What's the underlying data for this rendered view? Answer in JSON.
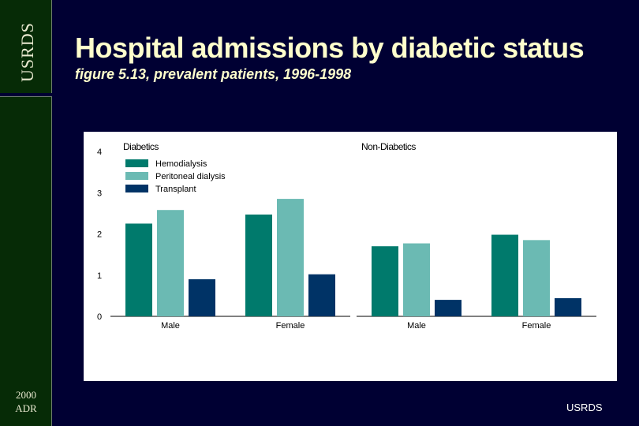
{
  "sidebar": {
    "vertical_label": "USRDS",
    "year": "2000",
    "adr": "ADR"
  },
  "header": {
    "title": "Hospital admissions by diabetic status",
    "subtitle": "figure 5.13, prevalent patients, 1996-1998"
  },
  "footer": {
    "label": "USRDS"
  },
  "colors": {
    "Hemodialysis": "#007a6c",
    "Peritoneal dialysis": "#6bbab3",
    "Transplant": "#003366"
  },
  "chart_data": {
    "type": "bar",
    "ylim": [
      0,
      4
    ],
    "yticks": [
      "0",
      "1",
      "2",
      "3",
      "4"
    ],
    "legend": [
      "Hemodialysis",
      "Peritoneal dialysis",
      "Transplant"
    ],
    "panels": [
      {
        "title": "Diabetics",
        "categories": [
          "Male",
          "Female"
        ],
        "series": [
          {
            "name": "Hemodialysis",
            "values": [
              2.25,
              2.47
            ]
          },
          {
            "name": "Peritoneal dialysis",
            "values": [
              2.58,
              2.85
            ]
          },
          {
            "name": "Transplant",
            "values": [
              0.9,
              1.02
            ]
          }
        ]
      },
      {
        "title": "Non-Diabetics",
        "categories": [
          "Male",
          "Female"
        ],
        "series": [
          {
            "name": "Hemodialysis",
            "values": [
              1.7,
              1.98
            ]
          },
          {
            "name": "Peritoneal dialysis",
            "values": [
              1.77,
              1.85
            ]
          },
          {
            "name": "Transplant",
            "values": [
              0.4,
              0.44
            ]
          }
        ]
      }
    ]
  }
}
